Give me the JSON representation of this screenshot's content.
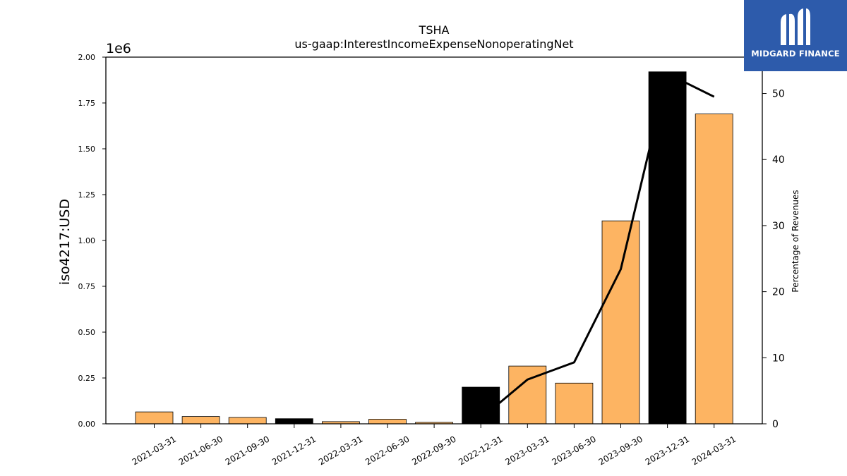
{
  "chart_data": {
    "type": "bar+line",
    "title": "TSHA",
    "subtitle": "us-gaap:InterestIncomeExpenseNonoperatingNet",
    "ylabel": "iso4217:USD",
    "y_offset_label": "1e6",
    "y2label": "Percentage of Revenues",
    "ylim": [
      0,
      2000000
    ],
    "y2lim": [
      0,
      55.5
    ],
    "yticks": [
      "0.00",
      "0.25",
      "0.50",
      "0.75",
      "1.00",
      "1.25",
      "1.50",
      "1.75",
      "2.00"
    ],
    "y2ticks": [
      "0",
      "10",
      "20",
      "30",
      "40",
      "50"
    ],
    "categories": [
      "2021-03-31",
      "2021-06-30",
      "2021-09-30",
      "2021-12-31",
      "2022-03-31",
      "2022-06-30",
      "2022-09-30",
      "2022-12-31",
      "2023-03-31",
      "2023-06-30",
      "2023-09-30",
      "2023-12-31",
      "2024-03-31"
    ],
    "series": [
      {
        "kind": "bar",
        "values": [
          65000,
          40000,
          35000,
          28000,
          12000,
          25000,
          8000,
          200000,
          315000,
          222000,
          1107000,
          1920000,
          1690000
        ],
        "colors": [
          "#fdb462",
          "#fdb462",
          "#fdb462",
          "#000000",
          "#fdb462",
          "#fdb462",
          "#fdb462",
          "#000000",
          "#fdb462",
          "#fdb462",
          "#fdb462",
          "#000000",
          "#fdb462"
        ]
      },
      {
        "kind": "line",
        "axis": "right",
        "color": "#000000",
        "values": [
          null,
          null,
          null,
          null,
          null,
          null,
          null,
          0.8,
          6.7,
          9.3,
          23.4,
          53.0,
          49.5
        ]
      }
    ]
  },
  "logo": {
    "text": "MIDGARD FINANCE"
  }
}
